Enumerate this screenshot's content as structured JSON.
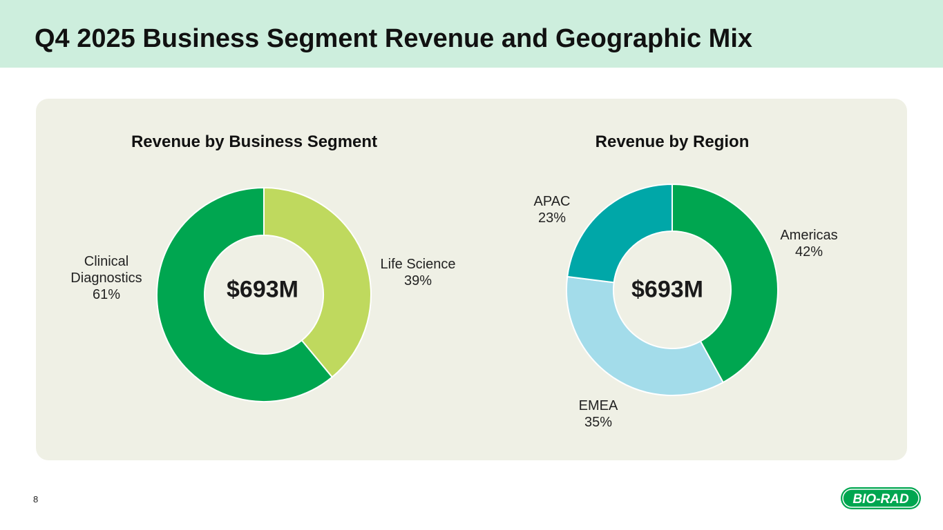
{
  "page": {
    "title": "Q4 2025 Business Segment Revenue and Geographic Mix",
    "page_number": "8",
    "logo_text": "BIO-RAD"
  },
  "colors": {
    "header_band": "#cdeedd",
    "panel": "#eff0e5",
    "green": "#00a650",
    "light_green": "#bfd95e",
    "teal": "#00a7a8",
    "light_blue": "#a3dcea"
  },
  "chart_data": [
    {
      "type": "pie",
      "title": "Revenue by Business Segment",
      "center_label": "$693M",
      "slices": [
        {
          "label_lines": [
            "Life Science"
          ],
          "percent_label": "39%",
          "value": 39,
          "color": "#bfd95e"
        },
        {
          "label_lines": [
            "Clinical",
            "Diagnostics"
          ],
          "percent_label": "61%",
          "value": 61,
          "color": "#00a650"
        }
      ]
    },
    {
      "type": "pie",
      "title": "Revenue by Region",
      "center_label": "$693M",
      "slices": [
        {
          "label_lines": [
            "Americas"
          ],
          "percent_label": "42%",
          "value": 42,
          "color": "#00a650"
        },
        {
          "label_lines": [
            "EMEA"
          ],
          "percent_label": "35%",
          "value": 35,
          "color": "#a3dcea"
        },
        {
          "label_lines": [
            "APAC"
          ],
          "percent_label": "23%",
          "value": 23,
          "color": "#00a7a8"
        }
      ]
    }
  ]
}
